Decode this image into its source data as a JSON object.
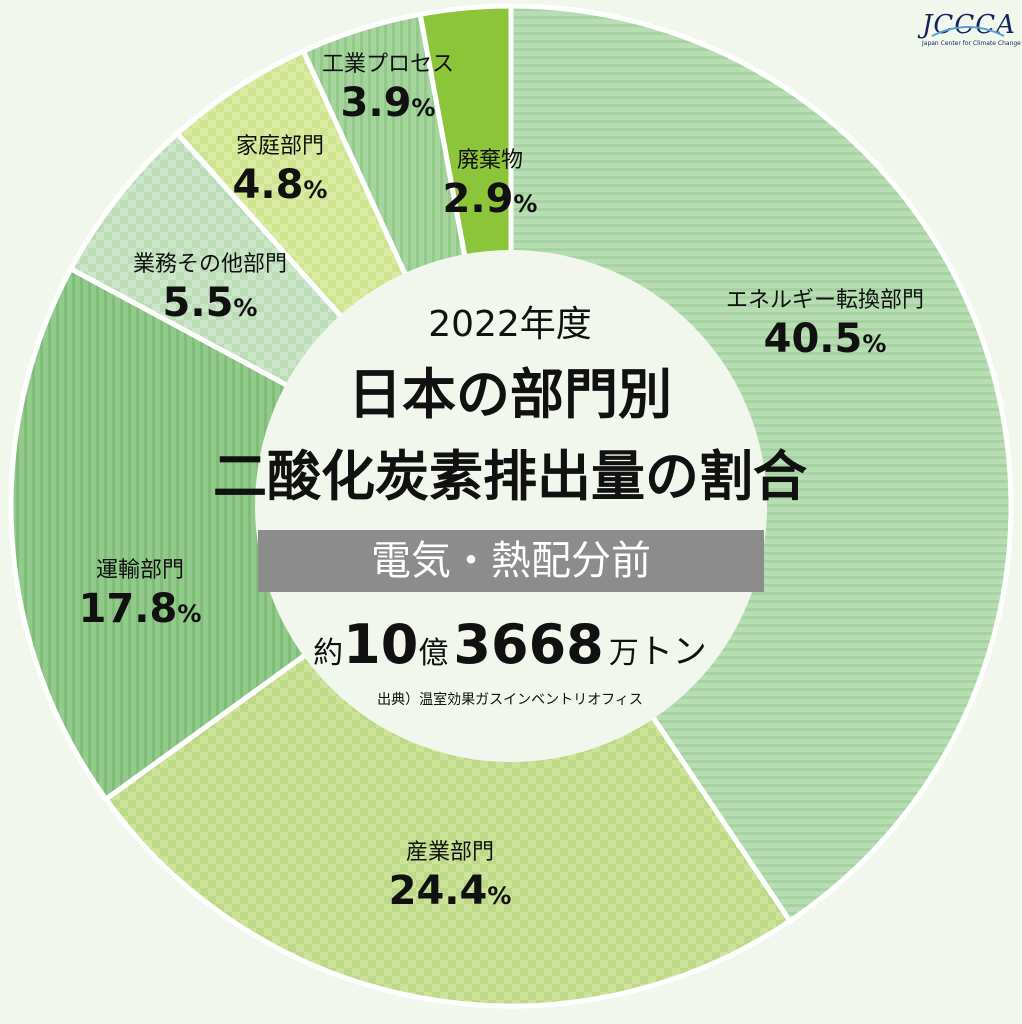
{
  "chart_data": {
    "type": "pie",
    "title": "日本の部門別 二酸化炭素排出量の割合",
    "year_label": "2022年度",
    "title_line1": "日本の部門別",
    "title_line2": "二酸化炭素排出量の割合",
    "subtitle": "電気・熱配分前",
    "total": {
      "prefix": "約",
      "billions": "10",
      "oku": "億",
      "man_value": "3668",
      "man": "万",
      "unit": "トン"
    },
    "source": "出典）温室効果ガスインベントリオフィス",
    "percent_sign": "%",
    "categories": [
      "エネルギー転換部門",
      "産業部門",
      "運輸部門",
      "業務その他部門",
      "家庭部門",
      "工業プロセス",
      "廃棄物"
    ],
    "values": [
      40.5,
      24.4,
      17.8,
      5.5,
      4.8,
      3.9,
      2.9
    ],
    "value_labels": [
      "40.5",
      "24.4",
      "17.8",
      "5.5",
      "4.8",
      "3.9",
      "2.9"
    ],
    "colors": [
      "#b8dcb4",
      "#cde39a",
      "#90c98a",
      "#c9e4c7",
      "#d9ea9f",
      "#a2d49a",
      "#8cc43a"
    ]
  },
  "logo": {
    "text": "JCCCA",
    "subtext": "Japan Center for Climate Change Actions"
  }
}
